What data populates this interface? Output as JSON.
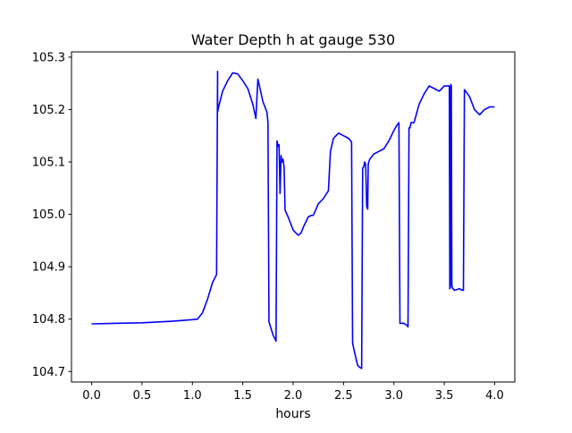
{
  "chart_data": {
    "type": "line",
    "title": "Water Depth h at gauge 530",
    "xlabel": "hours",
    "ylabel": "",
    "xlim": [
      -0.2,
      4.2
    ],
    "ylim": [
      104.68,
      105.31
    ],
    "xticks": [
      0.0,
      0.5,
      1.0,
      1.5,
      2.0,
      2.5,
      3.0,
      3.5,
      4.0
    ],
    "xtick_labels": [
      "0.0",
      "0.5",
      "1.0",
      "1.5",
      "2.0",
      "2.5",
      "3.0",
      "3.5",
      "4.0"
    ],
    "yticks": [
      104.7,
      104.8,
      104.9,
      105.0,
      105.1,
      105.2,
      105.3
    ],
    "ytick_labels": [
      "104.7",
      "104.8",
      "104.9",
      "105.0",
      "105.1",
      "105.2",
      "105.3"
    ],
    "grid": false,
    "series": [
      {
        "color": "#0000ff",
        "x": [
          0.0,
          0.5,
          0.8,
          1.0,
          1.05,
          1.1,
          1.15,
          1.2,
          1.24,
          1.25,
          1.25,
          1.26,
          1.3,
          1.35,
          1.4,
          1.45,
          1.5,
          1.55,
          1.6,
          1.63,
          1.65,
          1.66,
          1.7,
          1.74,
          1.75,
          1.76,
          1.8,
          1.83,
          1.84,
          1.85,
          1.86,
          1.87,
          1.88,
          1.89,
          1.9,
          1.91,
          1.92,
          1.95,
          1.97,
          2.0,
          2.05,
          2.08,
          2.1,
          2.15,
          2.18,
          2.2,
          2.25,
          2.3,
          2.35,
          2.37,
          2.4,
          2.45,
          2.5,
          2.55,
          2.58,
          2.59,
          2.6,
          2.62,
          2.64,
          2.66,
          2.68,
          2.69,
          2.7,
          2.71,
          2.72,
          2.73,
          2.74,
          2.745,
          2.75,
          2.76,
          2.8,
          2.85,
          2.9,
          2.95,
          3.0,
          3.03,
          3.05,
          3.06,
          3.07,
          3.1,
          3.13,
          3.14,
          3.15,
          3.16,
          3.17,
          3.2,
          3.25,
          3.3,
          3.35,
          3.4,
          3.45,
          3.5,
          3.55,
          3.555,
          3.56,
          3.565,
          3.57,
          3.575,
          3.58,
          3.6,
          3.65,
          3.68,
          3.69,
          3.7,
          3.75,
          3.8,
          3.85,
          3.9,
          3.95,
          4.0
        ],
        "y": [
          104.791,
          104.793,
          104.796,
          104.799,
          104.8,
          104.812,
          104.838,
          104.87,
          104.885,
          105.273,
          105.195,
          105.205,
          105.235,
          105.255,
          105.27,
          105.268,
          105.255,
          105.24,
          105.21,
          105.183,
          105.258,
          105.25,
          105.215,
          105.195,
          105.175,
          104.795,
          104.77,
          104.758,
          105.14,
          105.13,
          105.133,
          105.04,
          105.112,
          105.1,
          105.105,
          105.09,
          105.008,
          104.995,
          104.985,
          104.97,
          104.96,
          104.965,
          104.975,
          104.995,
          104.998,
          104.998,
          105.02,
          105.03,
          105.045,
          105.12,
          105.145,
          105.155,
          105.15,
          105.145,
          105.138,
          104.755,
          104.745,
          104.728,
          104.712,
          104.708,
          104.706,
          105.088,
          105.09,
          105.1,
          105.095,
          105.015,
          105.01,
          105.095,
          105.1,
          105.105,
          105.115,
          105.12,
          105.125,
          105.14,
          105.16,
          105.17,
          105.175,
          104.792,
          104.792,
          104.792,
          104.788,
          104.785,
          105.165,
          105.165,
          105.175,
          105.175,
          105.21,
          105.23,
          105.245,
          105.24,
          105.235,
          105.245,
          105.245,
          104.858,
          104.86,
          105.248,
          105.245,
          104.865,
          104.86,
          104.855,
          104.858,
          104.855,
          104.855,
          105.238,
          105.225,
          105.2,
          105.19,
          105.2,
          105.205,
          105.205
        ]
      }
    ]
  }
}
